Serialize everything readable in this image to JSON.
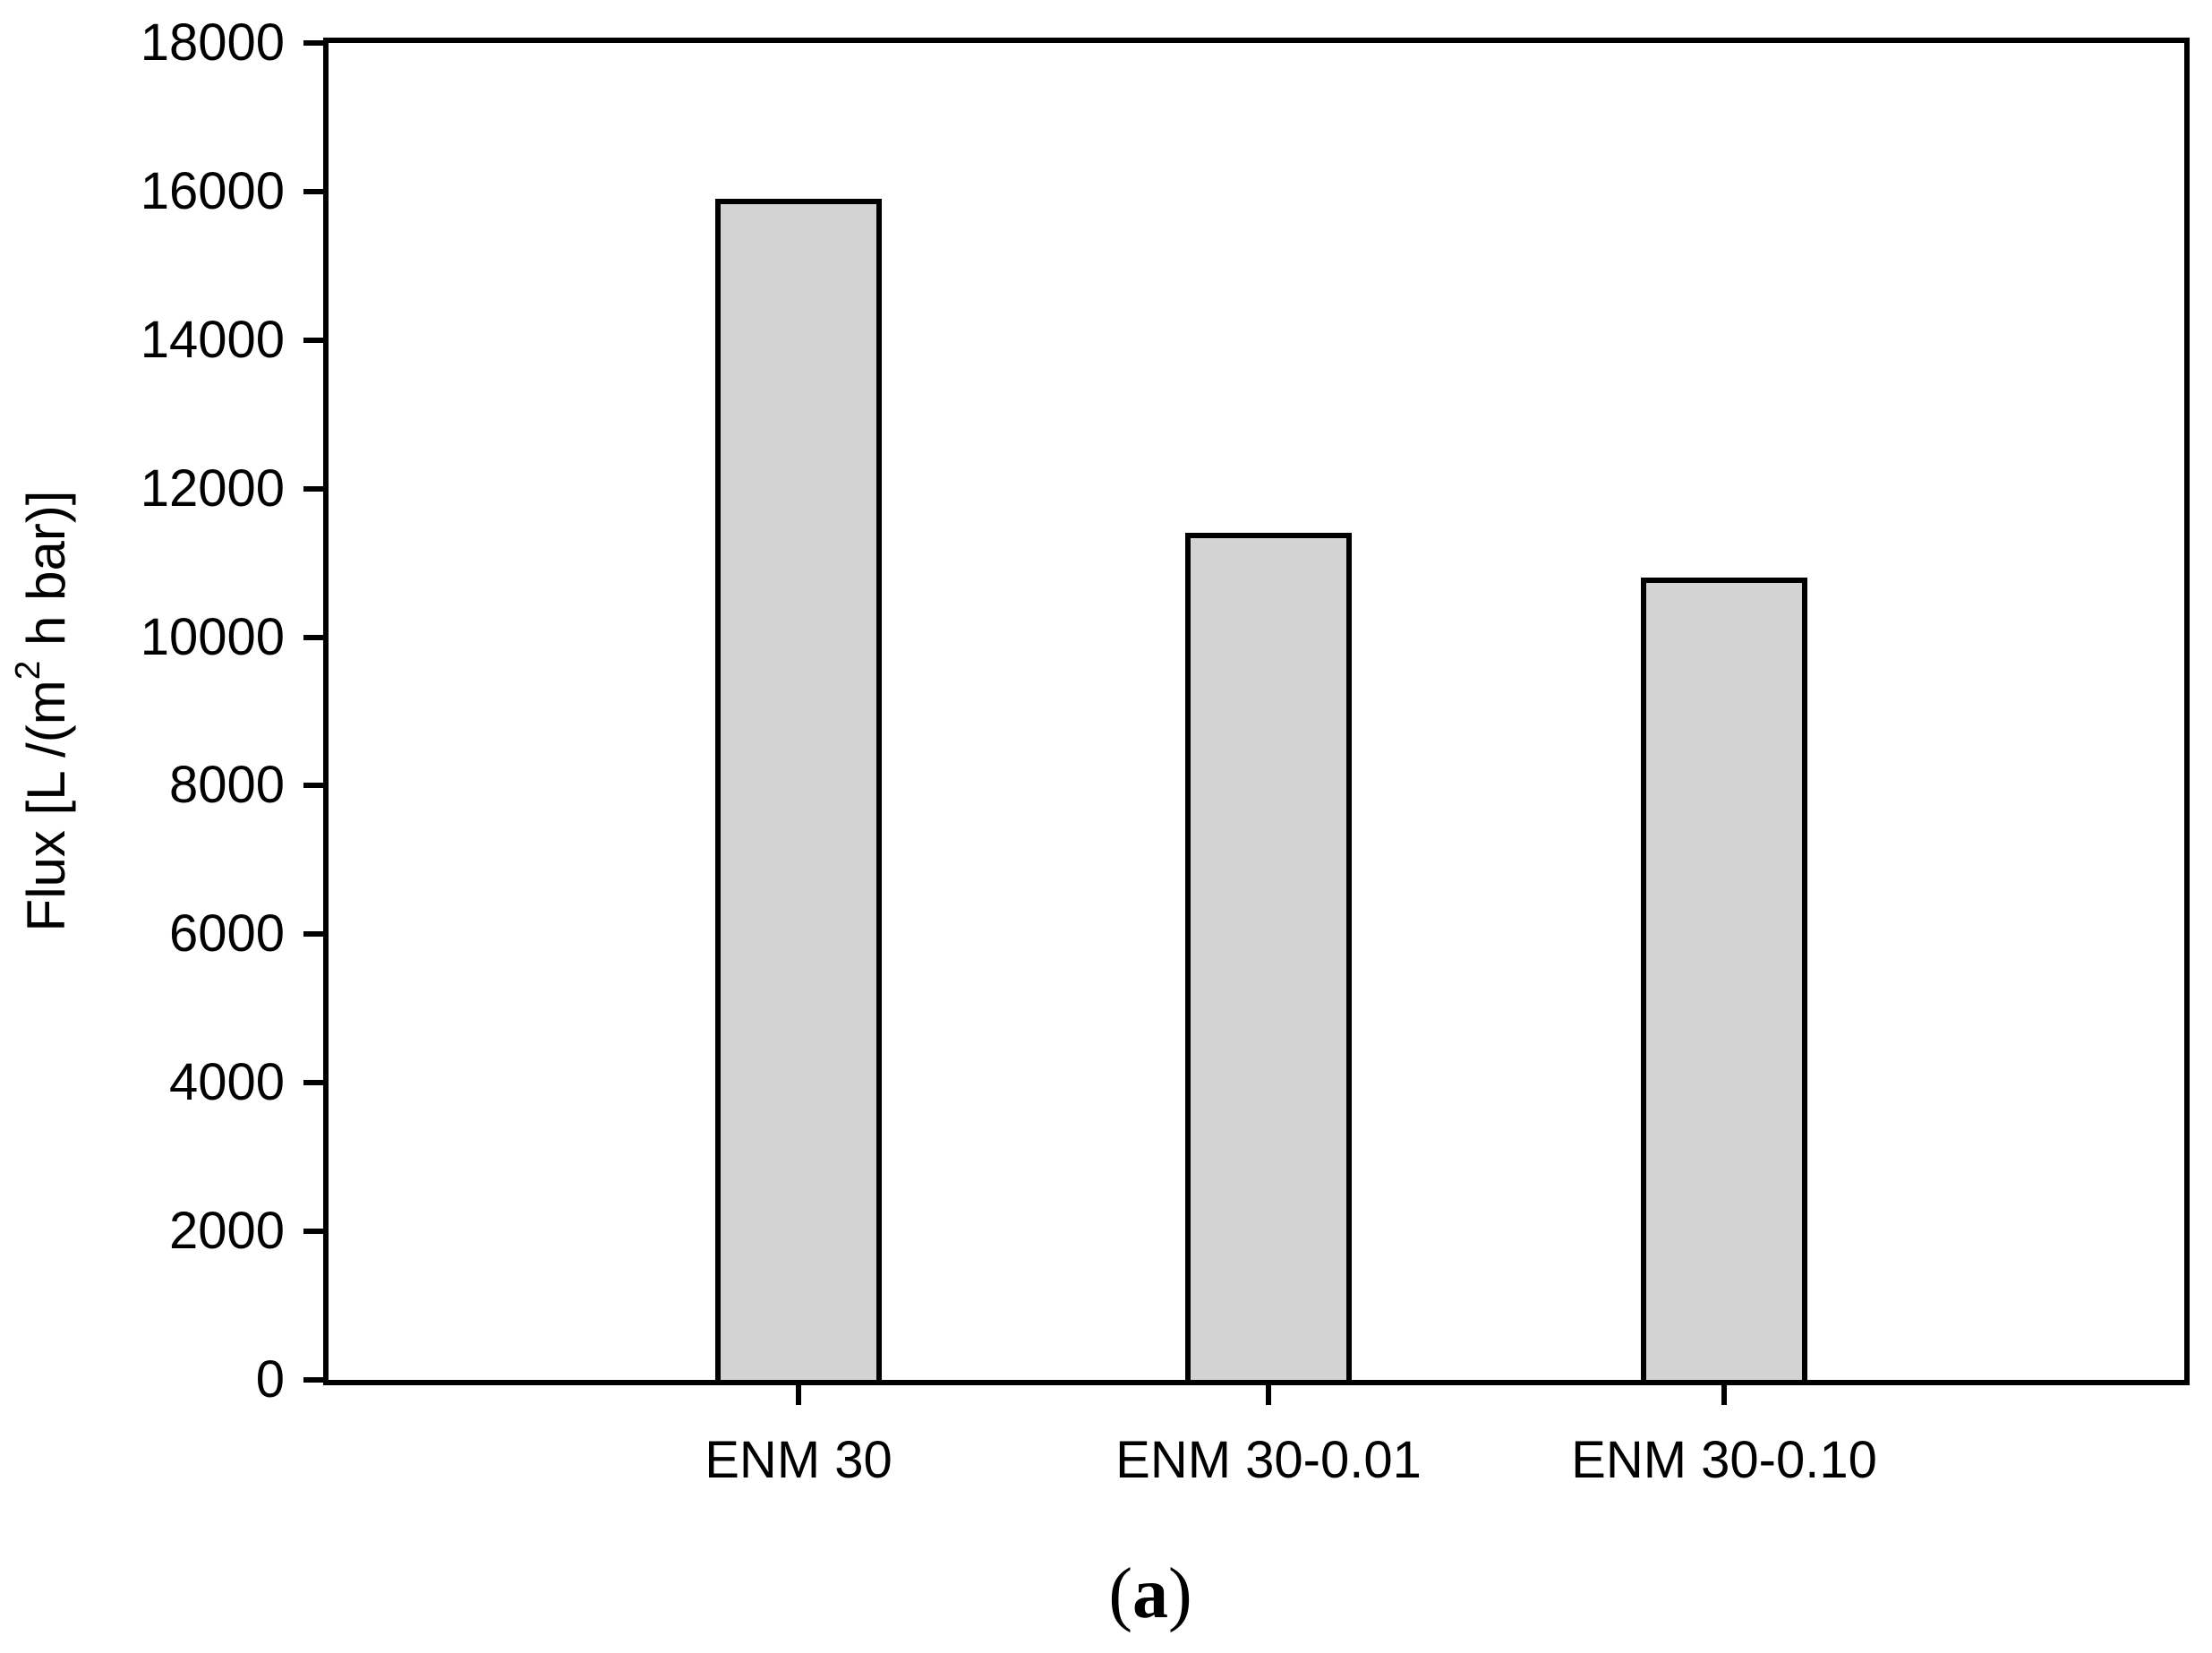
{
  "figure": {
    "background": "#ffffff",
    "caption": {
      "open": "(",
      "letter": "a",
      "close": ")"
    }
  },
  "chart_data": {
    "type": "bar",
    "categories": [
      "ENM 30",
      "ENM 30-0.01",
      "ENM 30-0.10"
    ],
    "values": [
      15900,
      11400,
      10800
    ],
    "title": "",
    "xlabel": "",
    "ylabel": "Flux [L /(m2 h bar)]",
    "ylabel_parts": {
      "prefix": "Flux [L /(m",
      "superscript": "2",
      "suffix": " h bar)]"
    },
    "ylim": [
      0,
      18000
    ],
    "yticks": [
      0,
      2000,
      4000,
      6000,
      8000,
      10000,
      12000,
      14000,
      16000,
      18000
    ],
    "grid": false,
    "legend_position": "none",
    "frame": "full-box",
    "bar_fill_color": "#d3d3d3",
    "bar_edge_color": "#000000",
    "axis_color": "#000000",
    "text_color": "#000000"
  }
}
